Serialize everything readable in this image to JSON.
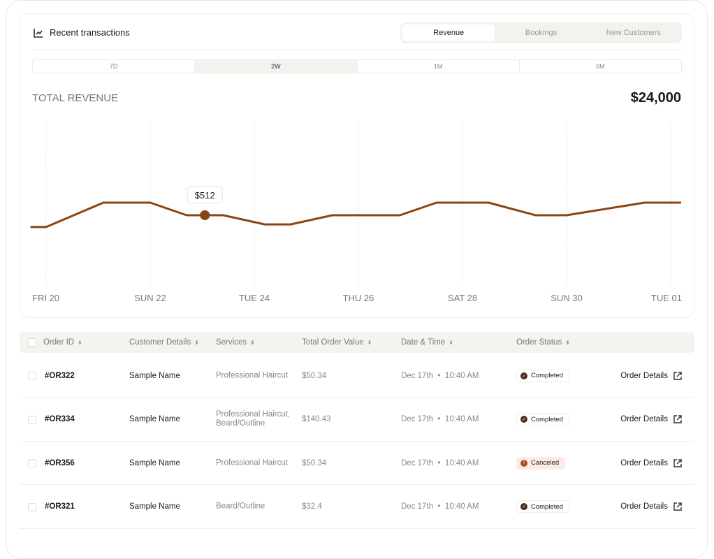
{
  "header": {
    "title": "Recent transactions",
    "icon": "chart-line-icon",
    "tabs": [
      {
        "label": "Revenue",
        "active": true
      },
      {
        "label": "Bookings",
        "active": false
      },
      {
        "label": "New Customers",
        "active": false
      }
    ],
    "ranges": [
      {
        "label": "7D",
        "active": false
      },
      {
        "label": "2W",
        "active": true
      },
      {
        "label": "1M",
        "active": false
      },
      {
        "label": "6M",
        "active": false
      }
    ]
  },
  "total": {
    "label": "TOTAL REVENUE",
    "value": "$24,000"
  },
  "chart_data": {
    "type": "line",
    "color": "#8b4513",
    "x_unit": "day",
    "x_ticks": [
      {
        "x": 20,
        "label": "FRI 20"
      },
      {
        "x": 22,
        "label": "SUN 22"
      },
      {
        "x": 24,
        "label": "TUE 24"
      },
      {
        "x": 26,
        "label": "THU 26"
      },
      {
        "x": 28,
        "label": "SAT 28"
      },
      {
        "x": 30,
        "label": "SUN 30"
      },
      {
        "x": 32,
        "label": "TUE 01"
      }
    ],
    "grid": "vertical dotted",
    "points": [
      [
        19.7,
        467
      ],
      [
        20.0,
        467
      ],
      [
        21.1,
        560
      ],
      [
        22.0,
        560
      ],
      [
        22.7,
        512
      ],
      [
        23.4,
        512
      ],
      [
        24.2,
        477
      ],
      [
        24.7,
        477
      ],
      [
        25.5,
        512
      ],
      [
        26.8,
        512
      ],
      [
        27.5,
        560
      ],
      [
        28.5,
        560
      ],
      [
        29.4,
        512
      ],
      [
        30.0,
        512
      ],
      [
        31.5,
        560
      ],
      [
        32.2,
        560
      ]
    ],
    "highlight": {
      "x": 23.05,
      "y": 512,
      "label": "$512"
    }
  },
  "table": {
    "columns": [
      "Order ID",
      "Customer Details",
      "Services",
      "Total Order Value",
      "Date & Time",
      "Order Status"
    ],
    "rows": [
      {
        "id": "#OR322",
        "customer": "Sample Name",
        "services": "Professional Haircut",
        "value": "$50.34",
        "date": "Dec 17th",
        "time": "10:40 AM",
        "status": "Completed",
        "action": "Order Details"
      },
      {
        "id": "#OR334",
        "customer": "Sample Name",
        "services": "Professional Haircut, Beard/Outline",
        "value": "$140.43",
        "date": "Dec 17th",
        "time": "10:40 AM",
        "status": "Completed",
        "action": "Order Details"
      },
      {
        "id": "#OR356",
        "customer": "Sample Name",
        "services": "Professional Haircut",
        "value": "$50.34",
        "date": "Dec 17th",
        "time": "10:40 AM",
        "status": "Canceled",
        "action": "Order Details"
      },
      {
        "id": "#OR321",
        "customer": "Sample Name",
        "services": "Beard/Outline",
        "value": "$32.4",
        "date": "Dec 17th",
        "time": "10:40 AM",
        "status": "Completed",
        "action": "Order Details"
      }
    ]
  }
}
